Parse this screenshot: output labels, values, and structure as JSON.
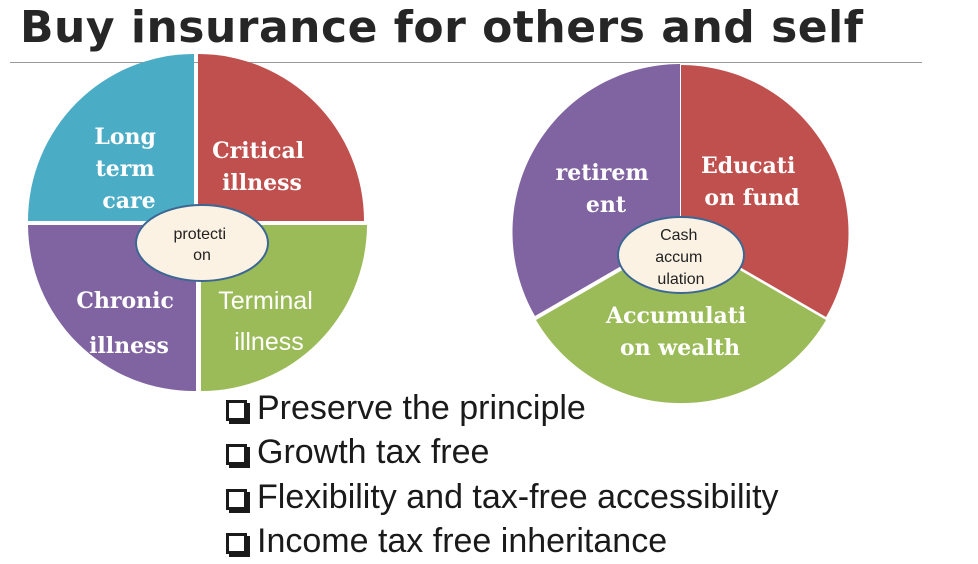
{
  "title": "Buy insurance for others and self",
  "protection_chart": {
    "center_label": [
      "protecti",
      "on"
    ],
    "segments": [
      {
        "label": [
          "Long",
          "term",
          "care"
        ],
        "color": "#4bacc6"
      },
      {
        "label": [
          "Critical",
          "illness"
        ],
        "color": "#c0504d"
      },
      {
        "label": [
          "Terminal",
          "illness"
        ],
        "color": "#9bbb59"
      },
      {
        "label": [
          "Chronic",
          "illness"
        ],
        "color": "#8064a2"
      }
    ]
  },
  "cash_chart": {
    "center_label": [
      "Cash",
      "accum",
      "ulation"
    ],
    "segments": [
      {
        "label": [
          "Educati",
          "on fund"
        ],
        "color": "#c0504d"
      },
      {
        "label": [
          "Accumulati",
          "on wealth"
        ],
        "color": "#9bbb59"
      },
      {
        "label": [
          "retirem",
          "ent"
        ],
        "color": "#8064a2"
      }
    ]
  },
  "bullets": [
    "Preserve the principle",
    "Growth tax free",
    "Flexibility and tax-free accessibility",
    "Income tax free inheritance"
  ]
}
